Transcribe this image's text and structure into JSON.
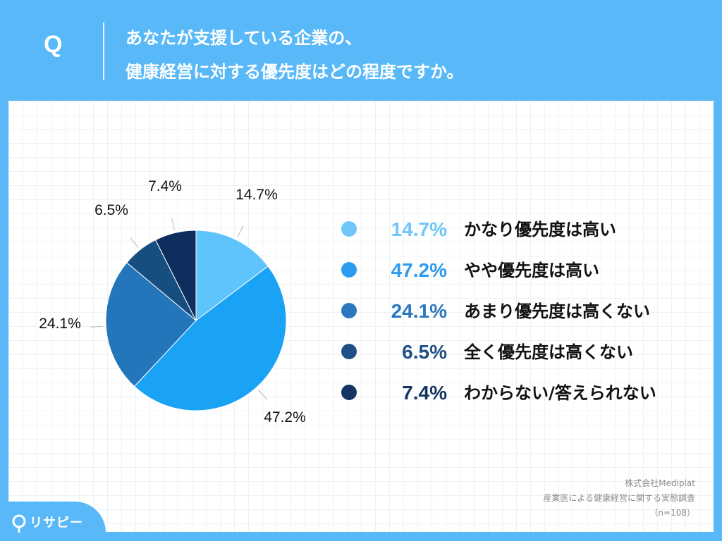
{
  "header": {
    "q_mark": "Q",
    "question_line1": "あなたが支援している企業の、",
    "question_line2": "健康経営に対する優先度はどの程度ですか。"
  },
  "chart_data": {
    "type": "pie",
    "start_angle_deg": 0,
    "direction": "clockwise",
    "slices": [
      {
        "label": "かなり優先度は高い",
        "value": 14.7,
        "value_label": "14.7%",
        "color": "#5ec4fb"
      },
      {
        "label": "やや優先度は高い",
        "value": 47.2,
        "value_label": "47.2%",
        "color": "#1aa3f5"
      },
      {
        "label": "あまり優先度は高くない",
        "value": 24.1,
        "value_label": "24.1%",
        "color": "#2376b9"
      },
      {
        "label": "全く優先度は高くない",
        "value": 6.5,
        "value_label": "6.5%",
        "color": "#174e80"
      },
      {
        "label": "わからない/答えられない",
        "value": 7.4,
        "value_label": "7.4%",
        "color": "#0e2f5e"
      }
    ]
  },
  "legend": {
    "items": [
      {
        "pct": "14.7%",
        "label": "かなり優先度は高い",
        "color": "#6ec6fa"
      },
      {
        "pct": "47.2%",
        "label": "やや優先度は高い",
        "color": "#2d9bee"
      },
      {
        "pct": "24.1%",
        "label": "あまり優先度は高くない",
        "color": "#2a78bf"
      },
      {
        "pct": "6.5%",
        "label": "全く優先度は高くない",
        "color": "#1f4f86"
      },
      {
        "pct": "7.4%",
        "label": "わからない/答えられない",
        "color": "#143563"
      }
    ]
  },
  "source": {
    "company": "株式会社Mediplat",
    "survey": "産業医による健康経営に関する実態調査",
    "n": "（n=108）"
  },
  "brand": {
    "name": "リサピー"
  }
}
